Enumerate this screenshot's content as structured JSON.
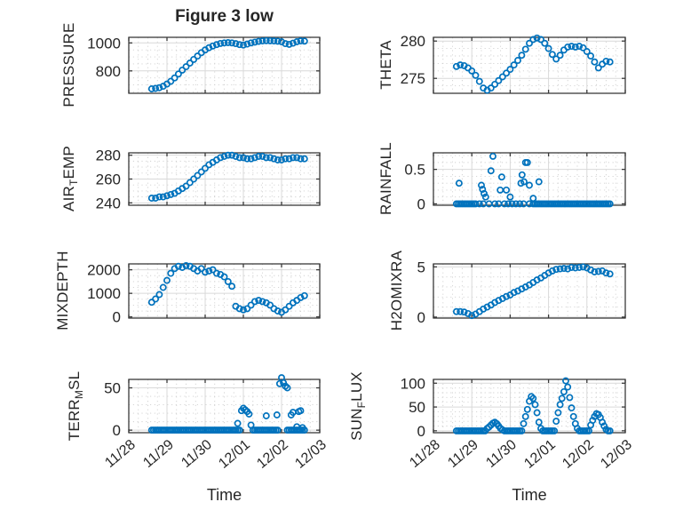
{
  "title": "Figure 3 low",
  "xlabel": "Time",
  "x_tick_labels": [
    "11/28",
    "11/29",
    "11/30",
    "12/01",
    "12/02",
    "12/03"
  ],
  "colors": {
    "marker": "#0072bd",
    "text": "#262626",
    "grid_major": "#d9d9d9",
    "grid_minor": "#d0d0d0",
    "axis": "#3a3a3a"
  },
  "chart_data": [
    {
      "id": "pressure",
      "type": "scatter",
      "col": 0,
      "row": 0,
      "ylabel": {
        "pre": "PRESSURE",
        "sub": "",
        "post": ""
      },
      "yticks": [
        800,
        1000
      ],
      "ylim": [
        640,
        1040
      ],
      "yminor": 50,
      "xlim": [
        0,
        5
      ],
      "xminor": 0.25,
      "x_days": [
        0.6,
        0.7,
        0.8,
        0.9,
        1.0,
        1.1,
        1.2,
        1.3,
        1.4,
        1.5,
        1.6,
        1.7,
        1.8,
        1.9,
        2.0,
        2.1,
        2.2,
        2.3,
        2.4,
        2.5,
        2.6,
        2.7,
        2.8,
        2.9,
        3.0,
        3.1,
        3.2,
        3.3,
        3.4,
        3.5,
        3.6,
        3.7,
        3.8,
        3.9,
        4.0,
        4.1,
        4.2,
        4.3,
        4.4,
        4.5,
        4.6
      ],
      "values": [
        672,
        675,
        680,
        690,
        706,
        726,
        750,
        778,
        806,
        830,
        856,
        882,
        906,
        930,
        950,
        966,
        978,
        988,
        996,
        1000,
        1002,
        1000,
        995,
        988,
        985,
        992,
        1000,
        1006,
        1011,
        1014,
        1016,
        1015,
        1014,
        1012,
        1008,
        995,
        990,
        998,
        1008,
        1014,
        1013
      ]
    },
    {
      "id": "theta",
      "type": "scatter",
      "col": 1,
      "row": 0,
      "ylabel": {
        "pre": "THETA",
        "sub": "",
        "post": ""
      },
      "yticks": [
        275,
        280
      ],
      "ylim": [
        273,
        280.5
      ],
      "yminor": 1,
      "xlim": [
        0,
        5
      ],
      "xminor": 0.25,
      "x_days": [
        0.6,
        0.7,
        0.8,
        0.9,
        1.0,
        1.1,
        1.2,
        1.3,
        1.4,
        1.5,
        1.6,
        1.7,
        1.8,
        1.9,
        2.0,
        2.1,
        2.2,
        2.3,
        2.4,
        2.5,
        2.6,
        2.7,
        2.8,
        2.9,
        3.0,
        3.1,
        3.2,
        3.3,
        3.4,
        3.5,
        3.6,
        3.7,
        3.8,
        3.9,
        4.0,
        4.1,
        4.2,
        4.3,
        4.4,
        4.5,
        4.6
      ],
      "values": [
        276.6,
        276.8,
        276.7,
        276.4,
        276.0,
        275.4,
        274.6,
        273.7,
        273.4,
        273.7,
        274.2,
        274.7,
        275.2,
        275.7,
        276.2,
        276.8,
        277.4,
        278.1,
        278.9,
        279.7,
        280.2,
        280.4,
        280.2,
        279.7,
        279.0,
        278.2,
        277.6,
        278.1,
        278.8,
        279.2,
        279.3,
        279.2,
        279.3,
        279.1,
        278.6,
        278.0,
        277.2,
        276.4,
        276.9,
        277.3,
        277.2
      ]
    },
    {
      "id": "air-temp",
      "type": "scatter",
      "col": 0,
      "row": 1,
      "ylabel": {
        "pre": "AIR",
        "sub": "T",
        "post": "EMP"
      },
      "yticks": [
        240,
        260,
        280
      ],
      "ylim": [
        238,
        282
      ],
      "yminor": 5,
      "xlim": [
        0,
        5
      ],
      "xminor": 0.25,
      "x_days": [
        0.6,
        0.7,
        0.8,
        0.9,
        1.0,
        1.1,
        1.2,
        1.3,
        1.4,
        1.5,
        1.6,
        1.7,
        1.8,
        1.9,
        2.0,
        2.1,
        2.2,
        2.3,
        2.4,
        2.5,
        2.6,
        2.7,
        2.8,
        2.9,
        3.0,
        3.1,
        3.2,
        3.3,
        3.4,
        3.5,
        3.6,
        3.7,
        3.8,
        3.9,
        4.0,
        4.1,
        4.2,
        4.3,
        4.4,
        4.5,
        4.6
      ],
      "values": [
        244,
        244,
        245,
        245,
        246,
        247,
        248,
        250,
        252,
        254,
        257,
        260,
        263,
        266,
        269,
        272,
        274,
        276,
        278,
        279,
        280,
        280,
        279,
        278,
        278,
        277,
        277,
        278,
        279,
        279,
        278,
        278,
        277,
        276,
        276,
        277,
        277,
        278,
        278,
        277,
        277
      ]
    },
    {
      "id": "rainfall",
      "type": "scatter",
      "col": 1,
      "row": 1,
      "ylabel": {
        "pre": "RAINFALL",
        "sub": "",
        "post": ""
      },
      "yticks": [
        0,
        0.5
      ],
      "ylim": [
        -0.02,
        0.74
      ],
      "yminor": 0.1,
      "xlim": [
        0,
        5
      ],
      "xminor": 0.25,
      "x_days": [
        0.6,
        0.65,
        0.7,
        0.75,
        0.8,
        0.85,
        0.9,
        0.95,
        1.0,
        1.05,
        1.1,
        1.2,
        1.3,
        1.45,
        1.6,
        1.7,
        1.85,
        1.95,
        2.05,
        2.15,
        2.25,
        2.35,
        2.5,
        2.6,
        2.65,
        2.7,
        2.75,
        2.8,
        2.85,
        2.9,
        2.95,
        3.0,
        3.05,
        3.1,
        3.15,
        3.2,
        3.25,
        3.3,
        3.35,
        3.4,
        3.45,
        3.5,
        3.55,
        3.6,
        3.65,
        3.7,
        3.75,
        3.8,
        3.85,
        3.9,
        3.95,
        4.0,
        4.05,
        4.1,
        4.15,
        4.2,
        4.25,
        4.3,
        4.35,
        4.4,
        4.45,
        4.5,
        4.55,
        4.6,
        0.67,
        1.25,
        1.28,
        1.32,
        1.36,
        1.5,
        1.55,
        1.74,
        1.78,
        1.9,
        2.0,
        2.28,
        2.31,
        2.36,
        2.4,
        2.45,
        2.5,
        2.6,
        2.75
      ],
      "values": [
        0,
        0,
        0,
        0,
        0,
        0,
        0,
        0,
        0,
        0,
        0,
        0,
        0,
        0,
        0,
        0,
        0,
        0,
        0,
        0,
        0,
        0,
        0,
        0,
        0,
        0,
        0,
        0,
        0,
        0,
        0,
        0,
        0,
        0,
        0,
        0,
        0,
        0,
        0,
        0,
        0,
        0,
        0,
        0,
        0,
        0,
        0,
        0,
        0,
        0,
        0,
        0,
        0,
        0,
        0,
        0,
        0,
        0,
        0,
        0,
        0,
        0,
        0,
        0,
        0.3,
        0.27,
        0.21,
        0.15,
        0.1,
        0.48,
        0.69,
        0.2,
        0.39,
        0.2,
        0.1,
        0.3,
        0.42,
        0.32,
        0.6,
        0.6,
        0.27,
        0.08,
        0.32
      ]
    },
    {
      "id": "mixdepth",
      "type": "scatter",
      "col": 0,
      "row": 2,
      "ylabel": {
        "pre": "MIXDEPTH",
        "sub": "",
        "post": ""
      },
      "yticks": [
        0,
        1000,
        2000
      ],
      "ylim": [
        -50,
        2250
      ],
      "yminor": 250,
      "xlim": [
        0,
        5
      ],
      "xminor": 0.25,
      "x_days": [
        0.6,
        0.7,
        0.8,
        0.9,
        1.0,
        1.1,
        1.2,
        1.3,
        1.4,
        1.5,
        1.6,
        1.7,
        1.8,
        1.9,
        2.0,
        2.1,
        2.2,
        2.3,
        2.4,
        2.5,
        2.6,
        2.7,
        2.8,
        2.9,
        3.0,
        3.1,
        3.2,
        3.3,
        3.4,
        3.5,
        3.6,
        3.7,
        3.8,
        3.9,
        4.0,
        4.1,
        4.2,
        4.3,
        4.4,
        4.5,
        4.6
      ],
      "values": [
        620,
        760,
        950,
        1250,
        1550,
        1850,
        2050,
        2150,
        2100,
        2180,
        2150,
        2050,
        1950,
        2050,
        1900,
        1950,
        2000,
        1850,
        1800,
        1700,
        1500,
        1300,
        450,
        350,
        300,
        350,
        500,
        650,
        700,
        650,
        600,
        500,
        350,
        250,
        200,
        300,
        450,
        600,
        700,
        820,
        900
      ]
    },
    {
      "id": "h2omixra",
      "type": "scatter",
      "col": 1,
      "row": 2,
      "ylabel": {
        "pre": "H2OMIXRA",
        "sub": "",
        "post": ""
      },
      "yticks": [
        0,
        5
      ],
      "ylim": [
        -0.1,
        5.3
      ],
      "yminor": 1,
      "xlim": [
        0,
        5
      ],
      "xminor": 0.25,
      "x_days": [
        0.6,
        0.7,
        0.8,
        0.9,
        1.0,
        1.1,
        1.2,
        1.3,
        1.4,
        1.5,
        1.6,
        1.7,
        1.8,
        1.9,
        2.0,
        2.1,
        2.2,
        2.3,
        2.4,
        2.5,
        2.6,
        2.7,
        2.8,
        2.9,
        3.0,
        3.1,
        3.2,
        3.3,
        3.4,
        3.5,
        3.6,
        3.7,
        3.8,
        3.9,
        4.0,
        4.1,
        4.2,
        4.3,
        4.4,
        4.5,
        4.6
      ],
      "values": [
        0.55,
        0.55,
        0.5,
        0.35,
        0.15,
        0.3,
        0.55,
        0.8,
        1.0,
        1.2,
        1.45,
        1.65,
        1.85,
        2.05,
        2.2,
        2.45,
        2.6,
        2.8,
        3.0,
        3.2,
        3.45,
        3.7,
        3.9,
        4.15,
        4.4,
        4.6,
        4.75,
        4.8,
        4.85,
        4.8,
        4.95,
        4.9,
        4.95,
        5.0,
        4.9,
        4.7,
        4.5,
        4.55,
        4.6,
        4.4,
        4.3
      ]
    },
    {
      "id": "terr-msl",
      "type": "scatter",
      "col": 0,
      "row": 3,
      "ylabel": {
        "pre": "TERR",
        "sub": "M",
        "post": "SL"
      },
      "yticks": [
        0,
        50
      ],
      "ylim": [
        -3,
        60
      ],
      "yminor": 10,
      "xlim": [
        0,
        5
      ],
      "xminor": 0.25,
      "x_days": [
        0.6,
        0.65,
        0.7,
        0.75,
        0.8,
        0.85,
        0.9,
        0.95,
        1.0,
        1.05,
        1.1,
        1.15,
        1.2,
        1.25,
        1.3,
        1.35,
        1.4,
        1.45,
        1.5,
        1.55,
        1.6,
        1.65,
        1.7,
        1.75,
        1.8,
        1.85,
        1.9,
        1.95,
        2.0,
        2.05,
        2.1,
        2.15,
        2.2,
        2.25,
        2.3,
        2.35,
        2.4,
        2.45,
        2.5,
        2.55,
        2.6,
        2.65,
        2.7,
        2.75,
        2.8,
        2.85,
        2.9,
        3.25,
        3.3,
        3.35,
        3.4,
        3.45,
        3.5,
        3.55,
        3.6,
        3.65,
        3.7,
        3.75,
        3.8,
        3.85,
        3.9,
        4.15,
        4.2,
        4.25,
        4.3,
        4.35,
        4.4,
        4.45,
        4.5,
        4.55,
        4.6,
        2.85,
        2.95,
        3.0,
        3.05,
        3.1,
        3.15,
        3.2,
        3.6,
        3.88,
        3.95,
        4.0,
        4.05,
        4.1,
        4.15,
        4.25,
        4.3,
        4.4,
        4.45,
        4.5,
        4.55
      ],
      "values": [
        0,
        0,
        0,
        0,
        0,
        0,
        0,
        0,
        0,
        0,
        0,
        0,
        0,
        0,
        0,
        0,
        0,
        0,
        0,
        0,
        0,
        0,
        0,
        0,
        0,
        0,
        0,
        0,
        0,
        0,
        0,
        0,
        0,
        0,
        0,
        0,
        0,
        0,
        0,
        0,
        0,
        0,
        0,
        0,
        0,
        0,
        0,
        0,
        0,
        0,
        0,
        0,
        0,
        0,
        0,
        0,
        0,
        0,
        0,
        0,
        0,
        0,
        0,
        0,
        0,
        0,
        0,
        0,
        0,
        0,
        0,
        8,
        23,
        26,
        24,
        22,
        19,
        6,
        17,
        18,
        55,
        62,
        56,
        52,
        50,
        18,
        21,
        4,
        22,
        23,
        3
      ]
    },
    {
      "id": "sun-flux",
      "type": "scatter",
      "col": 1,
      "row": 3,
      "ylabel": {
        "pre": "SUN",
        "sub": "F",
        "post": "LUX"
      },
      "yticks": [
        0,
        50,
        100
      ],
      "ylim": [
        -4,
        108
      ],
      "yminor": 10,
      "xlim": [
        0,
        5
      ],
      "xminor": 0.25,
      "x_days": [
        0.6,
        0.65,
        0.7,
        0.75,
        0.8,
        0.85,
        0.9,
        0.95,
        1.0,
        1.05,
        1.1,
        1.15,
        1.2,
        1.25,
        1.3,
        1.35,
        1.4,
        1.45,
        1.5,
        1.55,
        1.6,
        1.65,
        1.7,
        1.75,
        1.8,
        1.85,
        1.9,
        1.95,
        2.0,
        2.05,
        2.1,
        2.15,
        2.2,
        2.25,
        2.3,
        2.35,
        2.4,
        2.45,
        2.5,
        2.55,
        2.6,
        2.65,
        2.7,
        2.75,
        2.8,
        2.85,
        2.9,
        2.95,
        3.0,
        3.05,
        3.1,
        3.15,
        3.2,
        3.25,
        3.3,
        3.35,
        3.4,
        3.45,
        3.5,
        3.55,
        3.6,
        3.65,
        3.7,
        3.75,
        3.8,
        3.85,
        3.9,
        3.95,
        4.0,
        4.05,
        4.1,
        4.15,
        4.2,
        4.25,
        4.3,
        4.35,
        4.4,
        4.45,
        4.5,
        4.55,
        4.6
      ],
      "values": [
        0,
        0,
        0,
        0,
        0,
        0,
        0,
        0,
        0,
        0,
        0,
        0,
        0,
        0,
        0,
        0,
        5,
        8,
        12,
        16,
        18,
        15,
        10,
        5,
        2,
        0,
        0,
        0,
        0,
        0,
        0,
        0,
        0,
        0,
        0,
        15,
        30,
        45,
        62,
        72,
        68,
        55,
        38,
        18,
        5,
        0,
        0,
        0,
        0,
        0,
        0,
        0,
        20,
        38,
        55,
        68,
        82,
        105,
        92,
        70,
        48,
        30,
        15,
        5,
        0,
        0,
        0,
        0,
        0,
        0,
        12,
        22,
        30,
        36,
        34,
        28,
        18,
        10,
        3,
        0,
        0
      ]
    }
  ]
}
